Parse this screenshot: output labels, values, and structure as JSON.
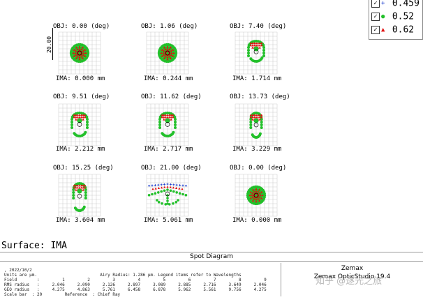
{
  "legend": [
    {
      "value": "0.459",
      "marker": "+",
      "color": "#1a3ccc"
    },
    {
      "value": "0.52",
      "marker": "●",
      "color": "#22c02a"
    },
    {
      "value": "0.62",
      "marker": "▲",
      "color": "#e01010"
    }
  ],
  "scale_label": "20.00",
  "spots": [
    {
      "obj": "OBJ: 0.00 (deg)",
      "ima": "IMA: 0.000 mm",
      "kind": "round"
    },
    {
      "obj": "OBJ: 1.06 (deg)",
      "ima": "IMA: 0.244 mm",
      "kind": "round"
    },
    {
      "obj": "OBJ: 7.40 (deg)",
      "ima": "IMA: 1.714 mm",
      "kind": "coma1"
    },
    {
      "obj": "OBJ: 9.51 (deg)",
      "ima": "IMA: 2.212 mm",
      "kind": "coma2"
    },
    {
      "obj": "OBJ: 11.62 (deg)",
      "ima": "IMA: 2.717 mm",
      "kind": "coma2"
    },
    {
      "obj": "OBJ: 13.73 (deg)",
      "ima": "IMA: 3.229 mm",
      "kind": "coma3"
    },
    {
      "obj": "OBJ: 15.25 (deg)",
      "ima": "IMA: 3.604 mm",
      "kind": "coma3b"
    },
    {
      "obj": "OBJ: 21.00 (deg)",
      "ima": "IMA: 5.061 mm",
      "kind": "wide"
    },
    {
      "obj": "OBJ: 0.00 (deg)",
      "ima": "IMA: 0.000 mm",
      "kind": "round"
    }
  ],
  "surface": "Surface: IMA",
  "title": "Spot Diagram",
  "info_lines": [
    ", 2022/10/2",
    "Units are µm.                         Airy Radius: 1.286 µm. Legend items refer to Wavelengths",
    "Field        :         1         2         3         4         5         6         7         8         9",
    "RMS radius   :     2.046     2.090     2.126     2.897     3.089     2.885     2.716     3.649     2.046",
    "GEO radius   :     4.275     4.863     5.761     6.458     6.878     5.962     5.561     9.756     4.275",
    "Scale bar  : 20         Reference  : Chief Ray"
  ],
  "right_box": {
    "line1": "Zemax",
    "line2": "Zemax OpticStudio 19.4"
  },
  "watermark": "知乎 @逐光之旅"
}
